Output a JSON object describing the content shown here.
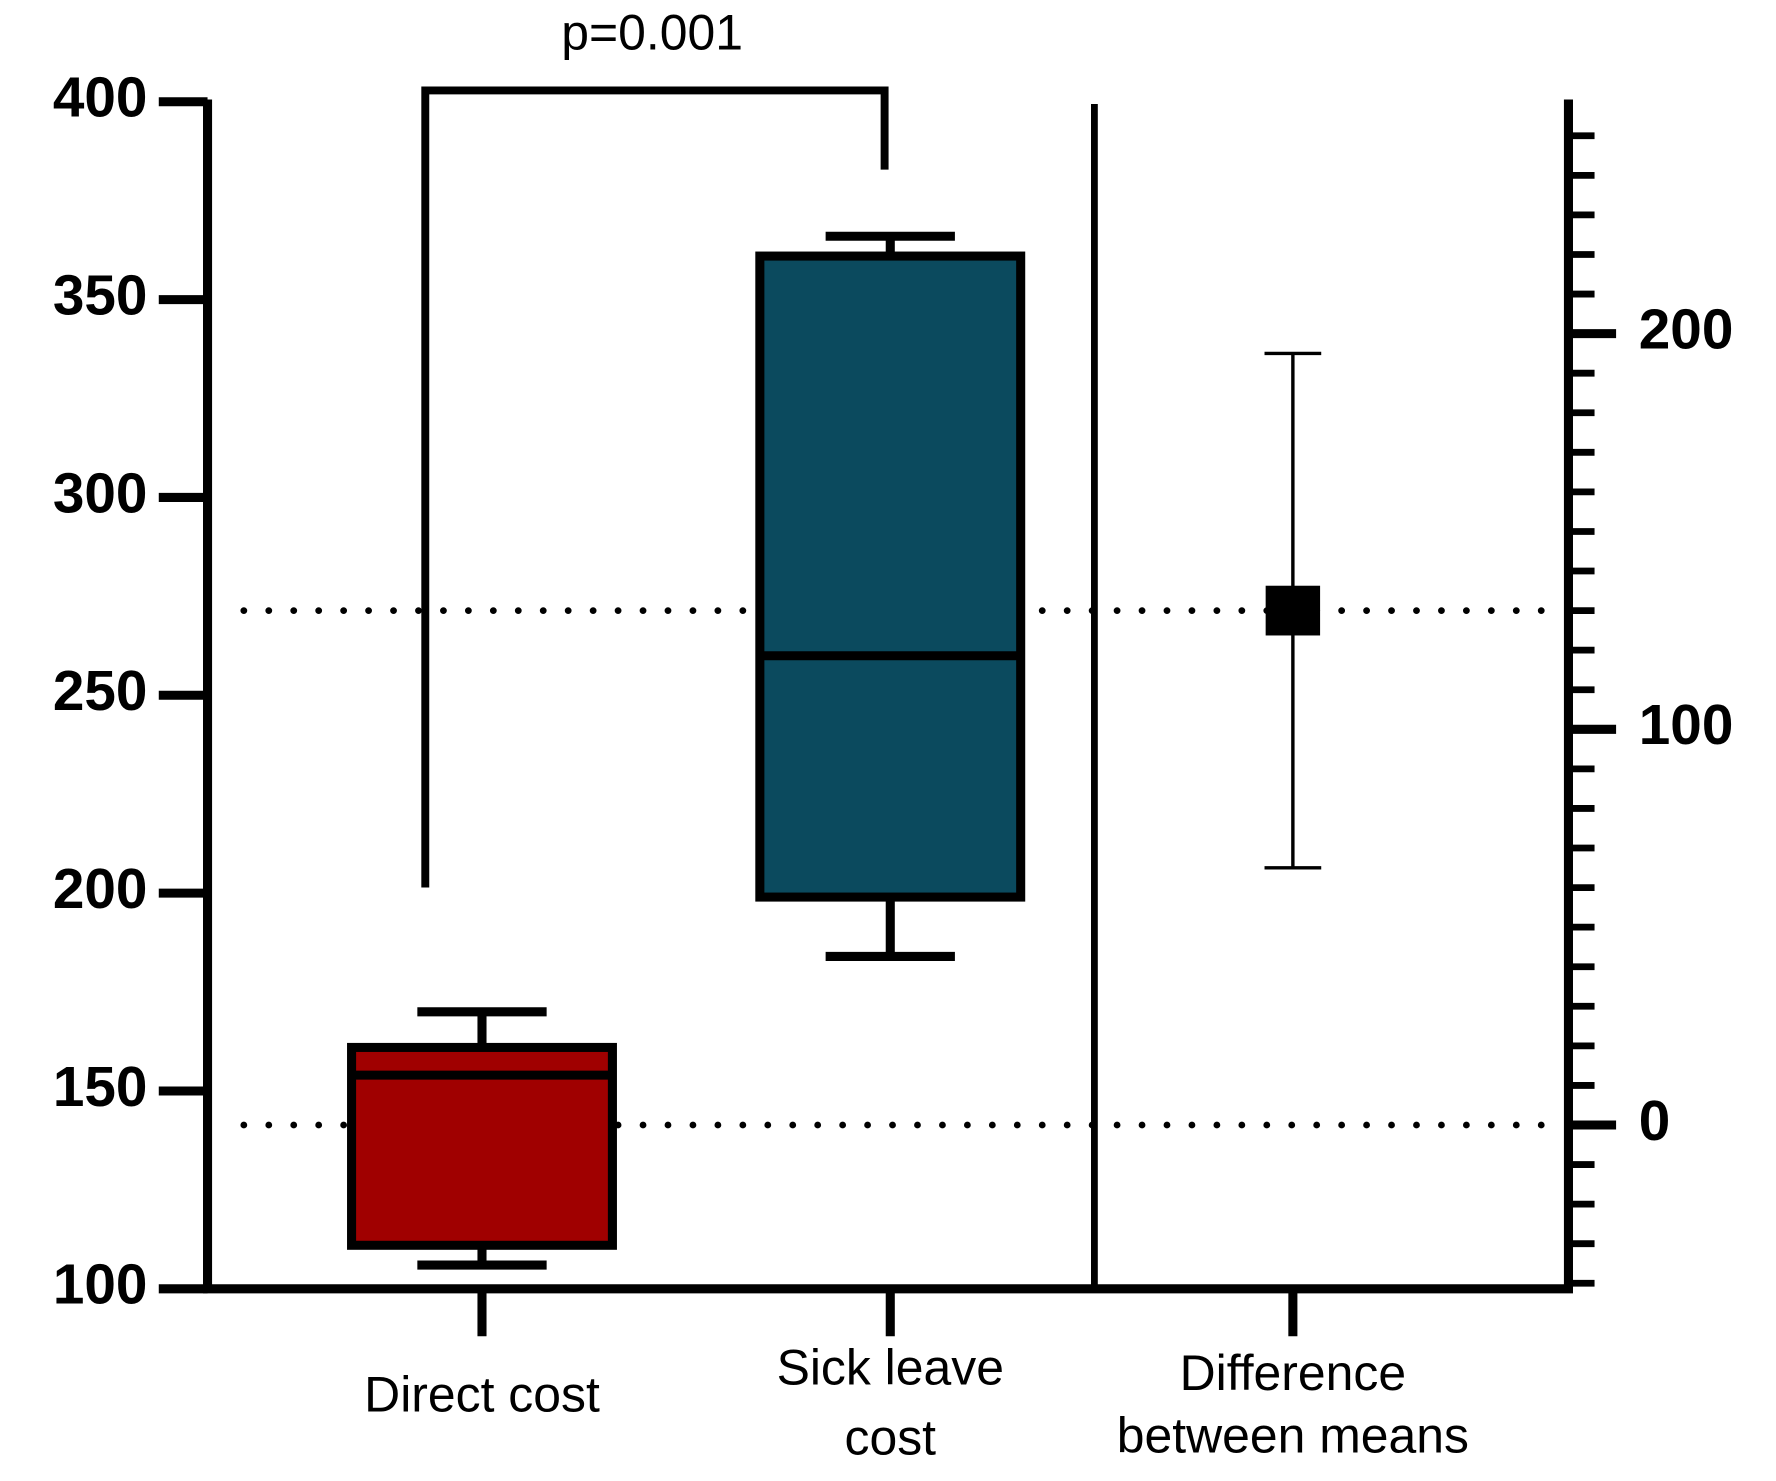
{
  "chart_data": {
    "type": "box",
    "annotation": "p=0.001",
    "categories": [
      [
        "Direct cost"
      ],
      [
        "Sick leave",
        "cost"
      ],
      [
        "Difference",
        "between means"
      ]
    ],
    "boxes": [
      {
        "color": "#a00000",
        "whisker_low": 106,
        "q1": 111,
        "median": 154,
        "q3": 161,
        "whisker_high": 170
      },
      {
        "color": "#0b4a5e",
        "whisker_low": 184,
        "q1": 199,
        "median": 260,
        "q3": 361,
        "whisker_high": 366
      }
    ],
    "difference": {
      "axis": "y2",
      "color": "#000000",
      "mean": 130,
      "ci_low": 65,
      "ci_high": 195
    },
    "ylim": [
      100,
      400
    ],
    "yticks": [
      100,
      150,
      200,
      250,
      300,
      350,
      400
    ],
    "y2lim": [
      -41.4,
      258.6
    ],
    "y2ticks": [
      0,
      100,
      200
    ],
    "y2minor": [
      -40,
      -30,
      -20,
      -10,
      10,
      20,
      30,
      40,
      50,
      60,
      70,
      80,
      90,
      110,
      120,
      130,
      140,
      150,
      160,
      170,
      180,
      190,
      210,
      220,
      230,
      240,
      250
    ]
  }
}
